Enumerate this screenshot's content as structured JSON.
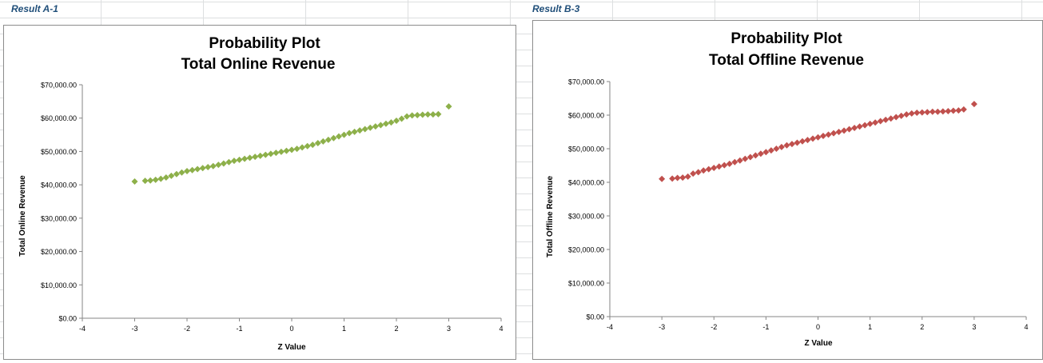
{
  "sheet": {
    "labels": [
      "Result A-1",
      "Result B-3"
    ]
  },
  "colors": {
    "series_a": "#8db04a",
    "series_b": "#c0504d",
    "label_text": "#1f4e79"
  },
  "chart_data": [
    {
      "type": "scatter",
      "title": "Probability Plot",
      "subtitle": "Total Online Revenue",
      "xlabel": "Z Value",
      "ylabel": "Total Online Revenue",
      "xlim": [
        -4,
        4
      ],
      "ylim": [
        0,
        70000
      ],
      "x_ticks": [
        "-4",
        "-3",
        "-2",
        "-1",
        "0",
        "1",
        "2",
        "3",
        "4"
      ],
      "y_ticks": [
        "$0.00",
        "$10,000.00",
        "$20,000.00",
        "$30,000.00",
        "$40,000.00",
        "$50,000.00",
        "$60,000.00",
        "$70,000.00"
      ],
      "grid": false,
      "legend": "none",
      "marker": "diamond",
      "series": [
        {
          "x": [
            -3.0,
            -2.8,
            -2.7,
            -2.6,
            -2.5,
            -2.4,
            -2.3,
            -2.2,
            -2.1,
            -2.0,
            -1.9,
            -1.8,
            -1.7,
            -1.6,
            -1.5,
            -1.4,
            -1.3,
            -1.2,
            -1.1,
            -1.0,
            -0.9,
            -0.8,
            -0.7,
            -0.6,
            -0.5,
            -0.4,
            -0.3,
            -0.2,
            -0.1,
            0.0,
            0.1,
            0.2,
            0.3,
            0.4,
            0.5,
            0.6,
            0.7,
            0.8,
            0.9,
            1.0,
            1.1,
            1.2,
            1.3,
            1.4,
            1.5,
            1.6,
            1.7,
            1.8,
            1.9,
            2.0,
            2.1,
            2.2,
            2.3,
            2.4,
            2.5,
            2.6,
            2.7,
            2.8,
            3.0
          ],
          "y": [
            41000,
            41200,
            41300,
            41500,
            41800,
            42200,
            42700,
            43200,
            43700,
            44100,
            44400,
            44700,
            45000,
            45300,
            45600,
            46000,
            46400,
            46800,
            47200,
            47500,
            47800,
            48100,
            48400,
            48700,
            49000,
            49300,
            49600,
            49900,
            50200,
            50500,
            50800,
            51200,
            51600,
            52000,
            52500,
            53000,
            53500,
            54000,
            54500,
            55000,
            55500,
            55900,
            56300,
            56700,
            57100,
            57500,
            57900,
            58300,
            58700,
            59200,
            59800,
            60500,
            60800,
            60900,
            61000,
            61100,
            61100,
            61200,
            63500
          ]
        }
      ]
    },
    {
      "type": "scatter",
      "title": "Probability Plot",
      "subtitle": "Total Offline Revenue",
      "xlabel": "Z Value",
      "ylabel": "Total Offline Revenue",
      "xlim": [
        -4,
        4
      ],
      "ylim": [
        0,
        70000
      ],
      "x_ticks": [
        "-4",
        "-3",
        "-2",
        "-1",
        "0",
        "1",
        "2",
        "3",
        "4"
      ],
      "y_ticks": [
        "$0.00",
        "$10,000.00",
        "$20,000.00",
        "$30,000.00",
        "$40,000.00",
        "$50,000.00",
        "$60,000.00",
        "$70,000.00"
      ],
      "grid": false,
      "legend": "none",
      "marker": "diamond",
      "series": [
        {
          "x": [
            -3.0,
            -2.8,
            -2.7,
            -2.6,
            -2.5,
            -2.4,
            -2.3,
            -2.2,
            -2.1,
            -2.0,
            -1.9,
            -1.8,
            -1.7,
            -1.6,
            -1.5,
            -1.4,
            -1.3,
            -1.2,
            -1.1,
            -1.0,
            -0.9,
            -0.8,
            -0.7,
            -0.6,
            -0.5,
            -0.4,
            -0.3,
            -0.2,
            -0.1,
            0.0,
            0.1,
            0.2,
            0.3,
            0.4,
            0.5,
            0.6,
            0.7,
            0.8,
            0.9,
            1.0,
            1.1,
            1.2,
            1.3,
            1.4,
            1.5,
            1.6,
            1.7,
            1.8,
            1.9,
            2.0,
            2.1,
            2.2,
            2.3,
            2.4,
            2.5,
            2.6,
            2.7,
            2.8,
            3.0
          ],
          "y": [
            41000,
            41100,
            41300,
            41400,
            41700,
            42600,
            43000,
            43500,
            43900,
            44300,
            44700,
            45100,
            45500,
            46000,
            46500,
            47000,
            47500,
            48000,
            48500,
            49000,
            49500,
            50000,
            50500,
            51000,
            51400,
            51800,
            52200,
            52600,
            53000,
            53400,
            53800,
            54200,
            54600,
            55000,
            55400,
            55800,
            56200,
            56600,
            57000,
            57400,
            57800,
            58200,
            58600,
            59000,
            59400,
            59800,
            60200,
            60500,
            60700,
            60800,
            60900,
            61000,
            61000,
            61100,
            61200,
            61300,
            61400,
            61700,
            63300
          ]
        }
      ]
    }
  ]
}
